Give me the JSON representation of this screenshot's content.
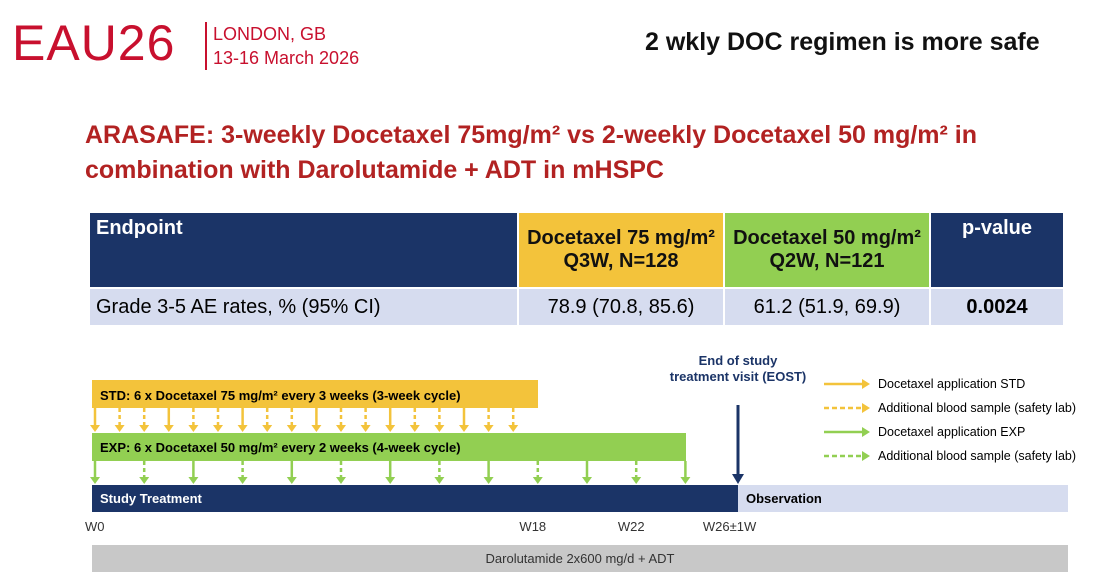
{
  "header": {
    "logo": "EAU26",
    "city": "LONDON, GB",
    "dates": "13-16 March 2026",
    "headline": "2 wkly DOC regimen is more safe"
  },
  "title": "ARASAFE:  3-weekly Docetaxel 75mg/m² vs  2-weekly Docetaxel 50 mg/m² in combination with Darolutamide + ADT in mHSPC",
  "table": {
    "header": [
      "Endpoint",
      "Docetaxel 75 mg/m² Q3W, N=128",
      "Docetaxel 50 mg/m² Q2W, N=121",
      "p-value"
    ],
    "rows": [
      [
        "Grade 3-5 AE rates, % (95% CI)",
        "78.9 (70.8, 85.6)",
        "61.2 (51.9, 69.9)",
        "0.0024"
      ]
    ]
  },
  "diagram": {
    "std": "STD: 6 x Docetaxel 75 mg/m² every 3 weeks (3-week cycle)",
    "exp": "EXP:  6 x Docetaxel 50 mg/m² every 2 weeks (4-week cycle)",
    "eost": "End of study treatment visit (EOST)",
    "study": "Study Treatment",
    "observation": "Observation",
    "weeks": [
      "W0",
      "W18",
      "W22",
      "W26±1W"
    ],
    "background": "Darolutamide 2x600 mg/d + ADT",
    "legend": [
      "Docetaxel application STD",
      "Additional blood sample (safety lab)",
      "Docetaxel application EXP",
      "Additional blood sample (safety lab)"
    ]
  }
}
